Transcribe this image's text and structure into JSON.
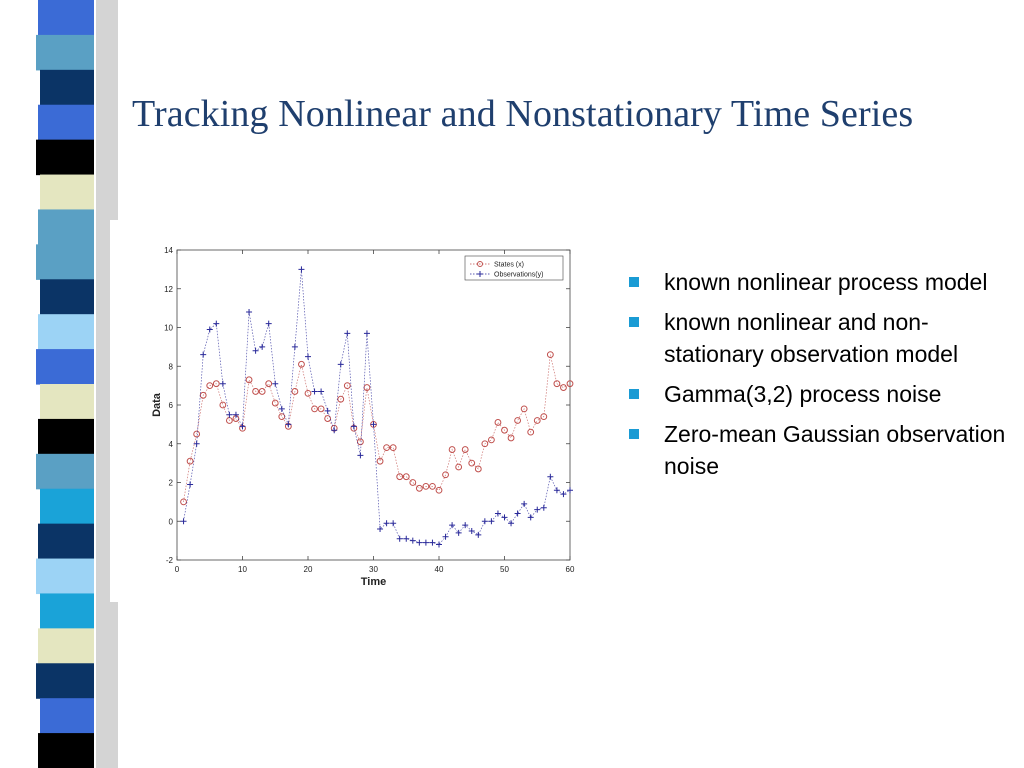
{
  "slide": {
    "title": "Tracking Nonlinear and Nonstationary Time Series",
    "bullets": [
      "known nonlinear process model",
      "known nonlinear and non-stationary observation model",
      "Gamma(3,2) process noise",
      "Zero-mean Gaussian observation noise"
    ],
    "bullet_color": "#1a9bd4",
    "title_color": "#1f3f6e"
  },
  "decor": {
    "stripe_colors": [
      "#3b6bd6",
      "#5aa0c4",
      "#0b3466",
      "#3b6bd6",
      "#000000",
      "#e4e6c0",
      "#5aa0c4",
      "#5aa0c4",
      "#0b3466",
      "#9cd3f5",
      "#3b6bd6",
      "#e4e6c0",
      "#000000",
      "#5aa0c4",
      "#1aa3d8",
      "#0b3466",
      "#9cd3f5",
      "#1aa3d8",
      "#e4e6c0",
      "#0b3466",
      "#3b6bd6",
      "#000000"
    ]
  },
  "chart_data": {
    "type": "scatter",
    "xlabel": "Time",
    "ylabel": "Data",
    "xlim": [
      0,
      60
    ],
    "ylim": [
      -2,
      14
    ],
    "x_ticks": [
      "0",
      "10",
      "20",
      "30",
      "40",
      "50",
      "60"
    ],
    "y_ticks": [
      "-2",
      "0",
      "2",
      "4",
      "6",
      "8",
      "10",
      "12",
      "14"
    ],
    "legend_position": "top-right",
    "grid": false,
    "x": [
      1,
      2,
      3,
      4,
      5,
      6,
      7,
      8,
      9,
      10,
      11,
      12,
      13,
      14,
      15,
      16,
      17,
      18,
      19,
      20,
      21,
      22,
      23,
      24,
      25,
      26,
      27,
      28,
      29,
      30,
      31,
      32,
      33,
      34,
      35,
      36,
      37,
      38,
      39,
      40,
      41,
      42,
      43,
      44,
      45,
      46,
      47,
      48,
      49,
      50,
      51,
      52,
      53,
      54,
      55,
      56,
      57,
      58,
      59,
      60
    ],
    "series": [
      {
        "name": "States (x)",
        "marker": "circle",
        "color": "#c0504d",
        "values": [
          1.0,
          3.1,
          4.5,
          6.5,
          7.0,
          7.1,
          6.0,
          5.2,
          5.3,
          4.8,
          7.3,
          6.7,
          6.7,
          7.1,
          6.1,
          5.4,
          4.9,
          6.7,
          8.1,
          6.6,
          5.8,
          5.8,
          5.3,
          4.8,
          6.3,
          7.0,
          4.8,
          4.1,
          6.9,
          5.0,
          3.1,
          3.8,
          3.8,
          2.3,
          2.3,
          2.0,
          1.7,
          1.8,
          1.8,
          1.6,
          2.4,
          3.7,
          2.8,
          3.7,
          3.0,
          2.7,
          4.0,
          4.2,
          5.1,
          4.7,
          4.3,
          5.2,
          5.8,
          4.6,
          5.2,
          5.4,
          8.6,
          7.1,
          6.9,
          7.1
        ]
      },
      {
        "name": "Observations(y)",
        "marker": "plus",
        "color": "#2a2a9a",
        "values": [
          0.0,
          1.9,
          4.0,
          8.6,
          9.9,
          10.2,
          7.1,
          5.5,
          5.5,
          4.9,
          10.8,
          8.8,
          9.0,
          10.2,
          7.1,
          5.8,
          5.0,
          9.0,
          13.0,
          8.5,
          6.7,
          6.7,
          5.7,
          4.7,
          8.1,
          9.7,
          4.9,
          3.4,
          9.7,
          5.0,
          -0.4,
          -0.1,
          -0.1,
          -0.9,
          -0.9,
          -1.0,
          -1.1,
          -1.1,
          -1.1,
          -1.2,
          -0.8,
          -0.2,
          -0.6,
          -0.2,
          -0.5,
          -0.7,
          0.0,
          0.0,
          0.4,
          0.2,
          -0.1,
          0.4,
          0.9,
          0.2,
          0.6,
          0.7,
          2.3,
          1.6,
          1.4,
          1.6
        ]
      }
    ]
  }
}
